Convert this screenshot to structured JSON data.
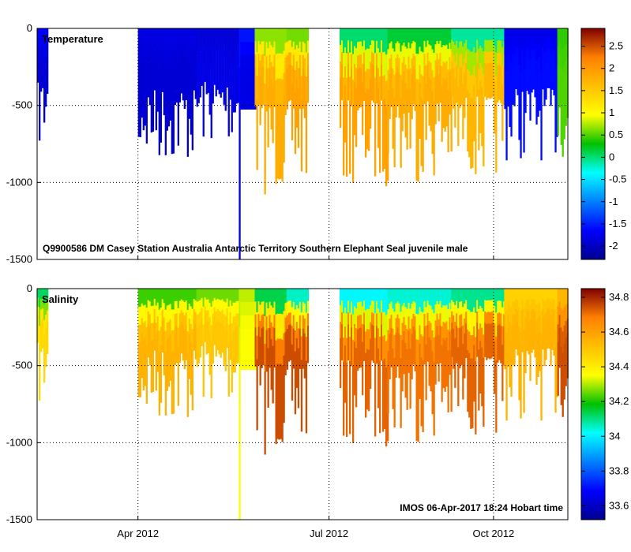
{
  "chart_data": [
    {
      "type": "heatmap",
      "title": "Temperature",
      "annotation": "Q9900586 DM Casey Station Australia Antarctic Territory Southern Elephant Seal juvenile male",
      "xlabel": "",
      "ylabel": "",
      "x_range": [
        0,
        100
      ],
      "x_ticks": [
        {
          "pos": 19,
          "label": "Apr 2012"
        },
        {
          "pos": 55,
          "label": "Jul 2012"
        },
        {
          "pos": 86,
          "label": "Oct 2012"
        }
      ],
      "ylim": [
        -1500,
        0
      ],
      "y_ticks": [
        0,
        -500,
        -1000,
        -1500
      ],
      "colorbar": {
        "min": -2.3,
        "max": 2.9,
        "ticks": [
          2.5,
          2,
          1.5,
          1,
          0.5,
          0,
          -0.5,
          -1,
          -1.5,
          -2
        ]
      },
      "segments": [
        {
          "from": 0,
          "to": 2,
          "max_depth": 780,
          "surface": -1.6,
          "deep": -1.9
        },
        {
          "from": 19,
          "to": 30,
          "max_depth": 880,
          "surface": -1.8,
          "deep": -1.9
        },
        {
          "from": 30,
          "to": 38,
          "max_depth": 760,
          "surface": -1.9,
          "deep": -1.8
        },
        {
          "from": 38,
          "to": 41,
          "max_depth": 1500,
          "surface": -1.5,
          "deep": -1.8
        },
        {
          "from": 41,
          "to": 47,
          "max_depth": 1080,
          "surface": 0.4,
          "deep": 1.8
        },
        {
          "from": 47,
          "to": 51,
          "max_depth": 1030,
          "surface": 0.3,
          "deep": 1.9
        },
        {
          "from": 57,
          "to": 66,
          "max_depth": 1030,
          "surface": -0.4,
          "deep": 1.9
        },
        {
          "from": 66,
          "to": 78,
          "max_depth": 1000,
          "surface": -0.2,
          "deep": 1.8
        },
        {
          "from": 78,
          "to": 88,
          "max_depth": 980,
          "surface": -0.5,
          "deep": 1.7
        },
        {
          "from": 88,
          "to": 98,
          "max_depth": 860,
          "surface": -1.8,
          "deep": -1.6
        },
        {
          "from": 98,
          "to": 100,
          "max_depth": 860,
          "surface": 0.4,
          "deep": 0.5
        }
      ]
    },
    {
      "type": "heatmap",
      "title": "Salinity",
      "annotation": "IMOS 06-Apr-2017 18:24 Hobart time",
      "xlabel": "",
      "ylabel": "",
      "x_range": [
        0,
        100
      ],
      "x_ticks": [
        {
          "pos": 19,
          "label": "Apr 2012"
        },
        {
          "pos": 55,
          "label": "Jul 2012"
        },
        {
          "pos": 86,
          "label": "Oct 2012"
        }
      ],
      "ylim": [
        -1500,
        0
      ],
      "y_ticks": [
        0,
        -500,
        -1000,
        -1500
      ],
      "colorbar": {
        "min": 33.52,
        "max": 34.85,
        "ticks": [
          34.8,
          34.6,
          34.4,
          34.2,
          34,
          33.8,
          33.6
        ]
      },
      "segments": [
        {
          "from": 0,
          "to": 2,
          "max_depth": 780,
          "surface": 34.05,
          "deep": 34.45
        },
        {
          "from": 19,
          "to": 30,
          "max_depth": 880,
          "surface": 34.15,
          "deep": 34.55
        },
        {
          "from": 30,
          "to": 38,
          "max_depth": 760,
          "surface": 34.2,
          "deep": 34.5
        },
        {
          "from": 38,
          "to": 41,
          "max_depth": 1500,
          "surface": 34.3,
          "deep": 34.35
        },
        {
          "from": 41,
          "to": 47,
          "max_depth": 1080,
          "surface": 34.0,
          "deep": 34.75
        },
        {
          "from": 47,
          "to": 51,
          "max_depth": 1030,
          "surface": 33.9,
          "deep": 34.75
        },
        {
          "from": 57,
          "to": 66,
          "max_depth": 1030,
          "surface": 33.85,
          "deep": 34.72
        },
        {
          "from": 66,
          "to": 78,
          "max_depth": 1000,
          "surface": 33.9,
          "deep": 34.7
        },
        {
          "from": 78,
          "to": 88,
          "max_depth": 980,
          "surface": 33.95,
          "deep": 34.72
        },
        {
          "from": 88,
          "to": 98,
          "max_depth": 860,
          "surface": 34.45,
          "deep": 34.55
        },
        {
          "from": 98,
          "to": 100,
          "max_depth": 860,
          "surface": 34.5,
          "deep": 34.75
        }
      ]
    }
  ]
}
